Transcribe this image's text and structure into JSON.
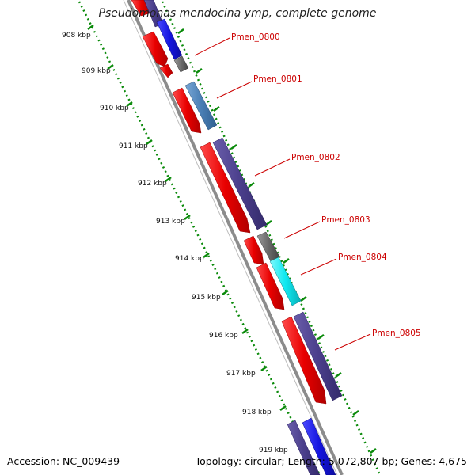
{
  "title": "Pseudomonas mendocina ymp, complete genome",
  "accession": "Accession: NC_009439",
  "summary": "Topology: circular; Length: 5,072,807 bp; Genes: 4,675",
  "scale_labels": [
    "908 kbp",
    "909 kbp",
    "910 kbp",
    "911 kbp",
    "912 kbp",
    "913 kbp",
    "914 kbp",
    "915 kbp",
    "916 kbp",
    "917 kbp",
    "918 kbp",
    "919 kbp"
  ],
  "gene_labels": [
    "Pmen_0800",
    "Pmen_0801",
    "Pmen_0802",
    "Pmen_0803",
    "Pmen_0804",
    "Pmen_0805"
  ],
  "colors": {
    "forward_cds": "#ee0000",
    "purple_feature": "#4b3f8c",
    "blue_feature": "#1515e0",
    "steelblue_feature": "#4a7fb5",
    "gray_feature": "#6a6a6a",
    "cyan_feature": "#10e8f0",
    "backbone": "#8c8c8c",
    "ticks": "#0a8a0a",
    "label_text": "#cc0000"
  }
}
